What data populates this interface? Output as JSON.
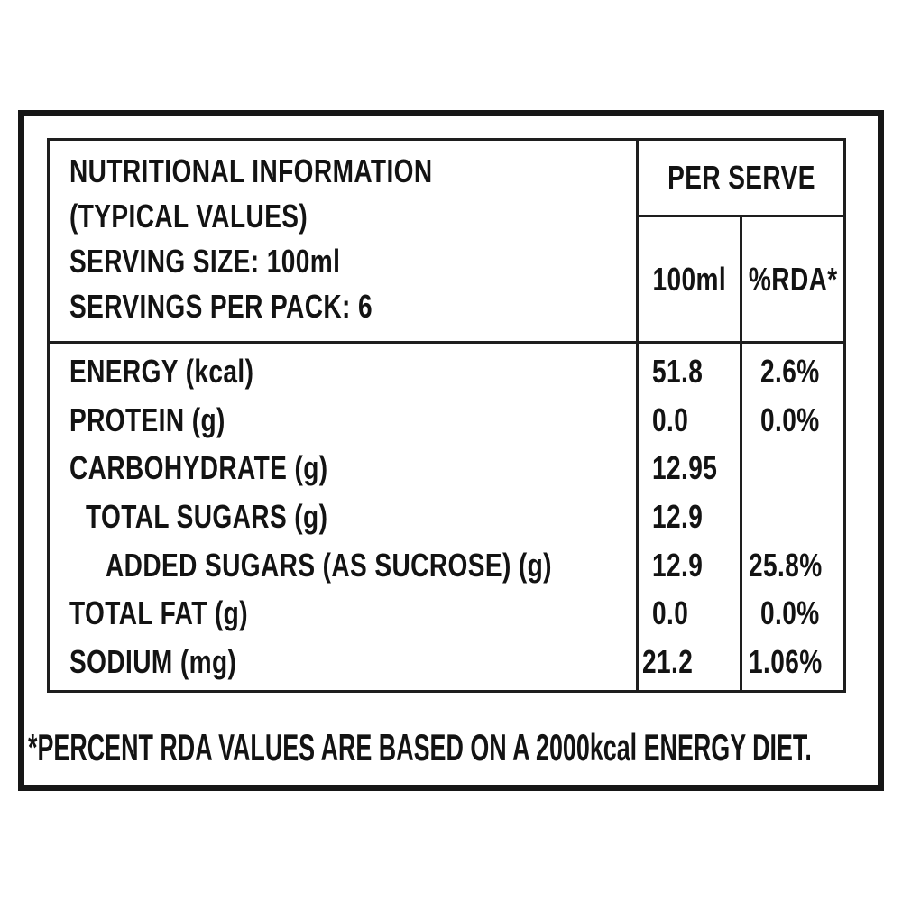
{
  "label": {
    "header": {
      "title_line1": "NUTRITIONAL INFORMATION",
      "title_line2": "(TYPICAL VALUES)",
      "serving_size": "SERVING SIZE: 100ml",
      "servings_per_pack": "SERVINGS PER PACK: 6",
      "per_serve": "PER SERVE",
      "col_amount": "100ml",
      "col_rda": "%RDA*"
    },
    "rows": [
      {
        "name": "ENERGY (kcal)",
        "amount": "51.8",
        "rda": "2.6%"
      },
      {
        "name": "PROTEIN (g)",
        "amount": "0.0",
        "rda": "0.0%"
      },
      {
        "name": "CARBOHYDRATE (g)",
        "amount": "12.95",
        "rda": ""
      },
      {
        "name": "TOTAL SUGARS (g)",
        "amount": "12.9",
        "rda": ""
      },
      {
        "name": "ADDED SUGARS (AS SUCROSE) (g)",
        "amount": "12.9",
        "rda": "25.8%"
      },
      {
        "name": "TOTAL FAT (g)",
        "amount": "0.0",
        "rda": "0.0%"
      },
      {
        "name": "SODIUM (mg)",
        "amount": "21.2",
        "rda": "1.06%"
      }
    ],
    "footnote": "*PERCENT RDA VALUES ARE BASED ON A 2000kcal ENERGY DIET.",
    "colors": {
      "ink": "#161616",
      "background": "#ffffff"
    }
  }
}
